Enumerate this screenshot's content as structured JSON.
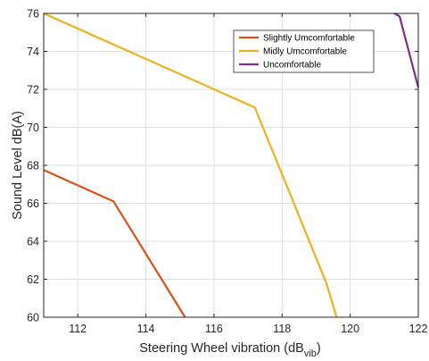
{
  "chart_data": {
    "type": "line",
    "title": "",
    "xlabel": "Steering Wheel vibration (dB",
    "xlabel_subscript": "vib",
    "xlabel_suffix": ")",
    "ylabel": "Sound Level dB(A)",
    "xlim": [
      111,
      122
    ],
    "ylim": [
      60,
      76
    ],
    "xticks": [
      112,
      114,
      116,
      118,
      120,
      122
    ],
    "yticks": [
      60,
      62,
      64,
      66,
      68,
      70,
      72,
      74,
      76
    ],
    "grid": true,
    "legend_position": "top-right",
    "series": [
      {
        "name": "Slightly Umcomfortable",
        "color": "#D95319",
        "x": [
          111.0,
          113.05,
          115.15
        ],
        "y": [
          67.75,
          66.1,
          60.0
        ]
      },
      {
        "name": "Midly Umcomfortable",
        "color": "#EDB120",
        "x": [
          111.0,
          117.2,
          119.3,
          119.6
        ],
        "y": [
          76.0,
          71.05,
          61.8,
          60.0
        ]
      },
      {
        "name": "Uncomfortable",
        "color": "#7E2F8E",
        "x": [
          121.3,
          121.45,
          122.0
        ],
        "y": [
          76.0,
          75.85,
          72.1
        ]
      }
    ]
  }
}
